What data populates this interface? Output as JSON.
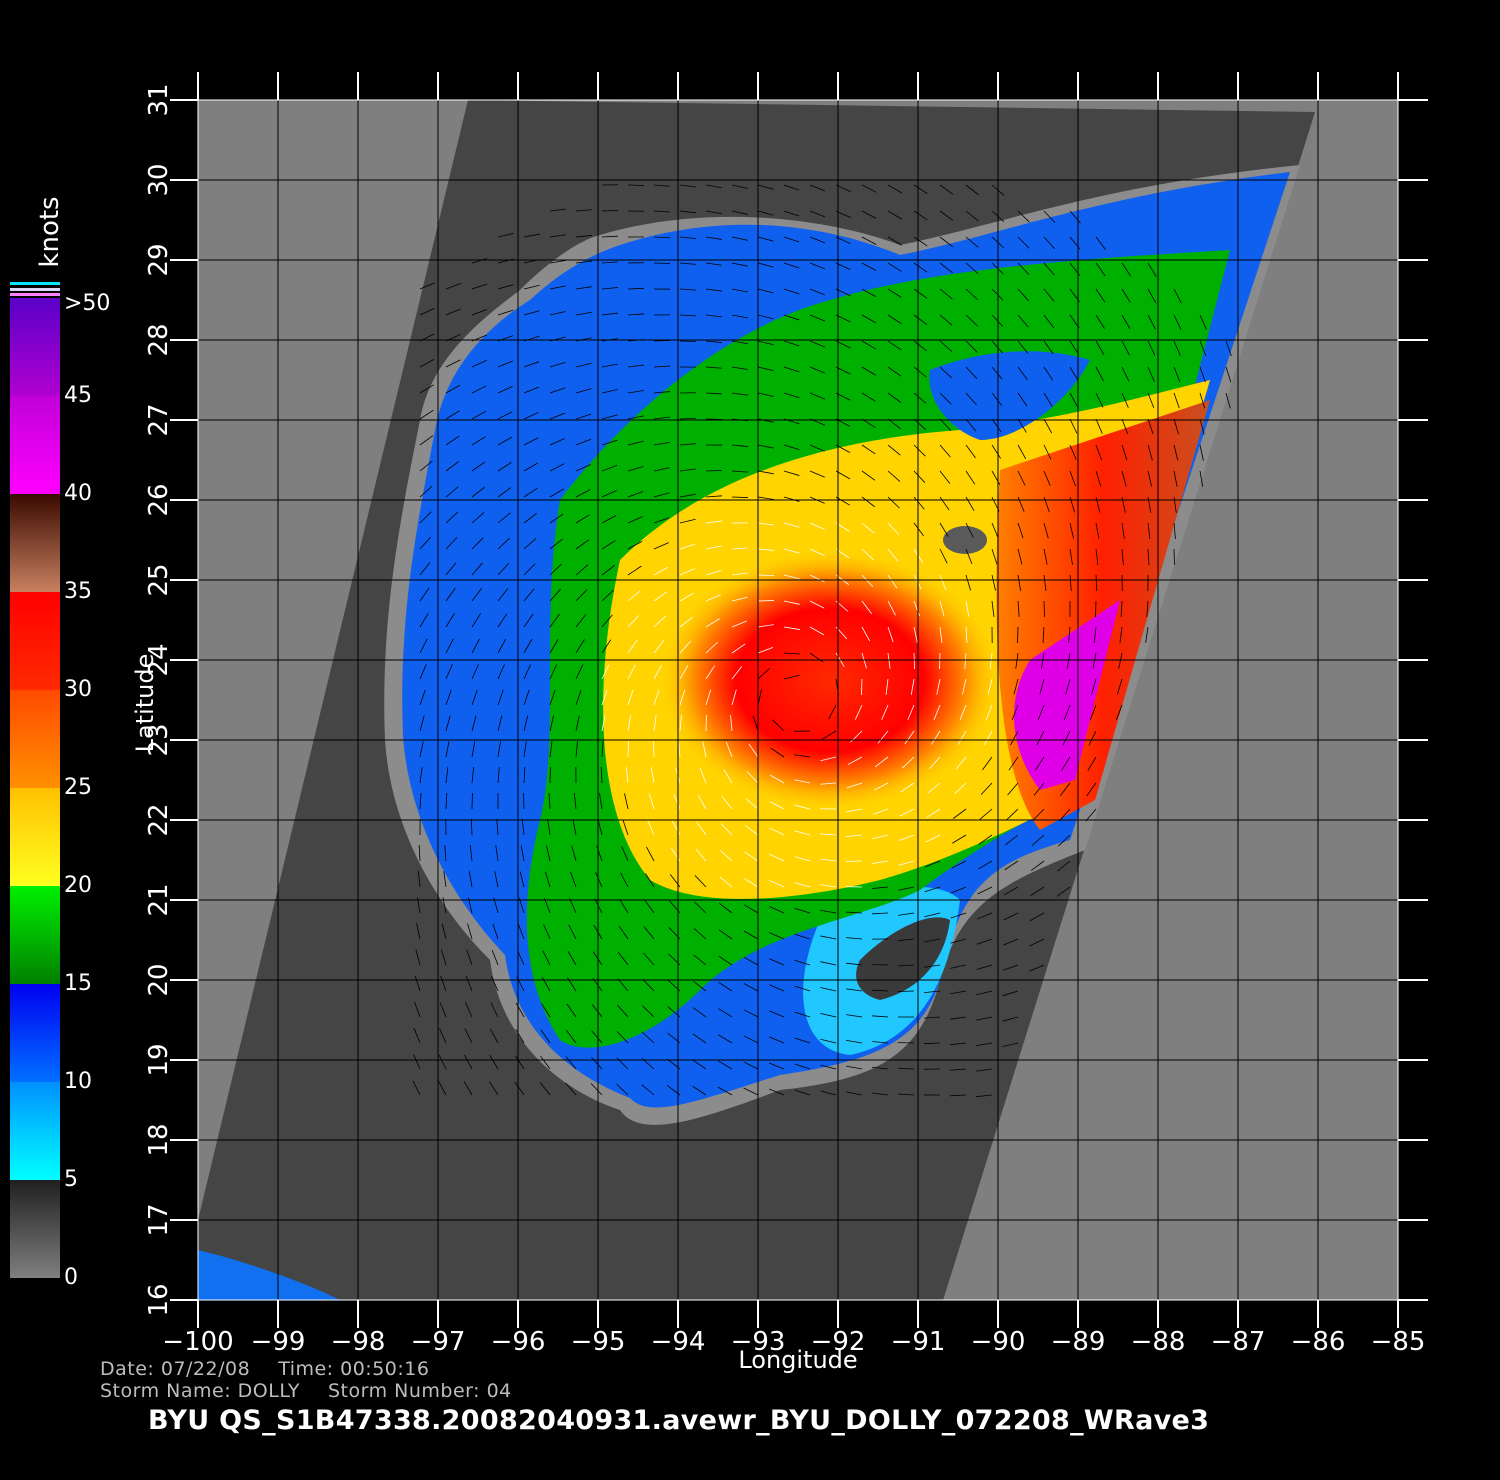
{
  "map": {
    "xlabel": "Longitude",
    "ylabel": "Latitude",
    "lon_ticks": [
      "−100",
      "−99",
      "−98",
      "−97",
      "−96",
      "−95",
      "−94",
      "−93",
      "−92",
      "−91",
      "−90",
      "−89",
      "−88",
      "−87",
      "−86",
      "−85"
    ],
    "lat_ticks": [
      "16",
      "17",
      "18",
      "19",
      "20",
      "21",
      "22",
      "23",
      "24",
      "25",
      "26",
      "27",
      "28",
      "29",
      "30",
      "31"
    ],
    "lon_range": [
      -100,
      -85
    ],
    "lat_range": [
      16,
      31
    ],
    "storm_center": {
      "lon": -92.5,
      "lat": 23.5
    },
    "colors": {
      "land": "#7f7f7f",
      "out_of_swath": "#454545",
      "background": "#000000"
    }
  },
  "colorbar": {
    "units": "knots",
    "labels": [
      ">50",
      "45",
      "40",
      "35",
      "30",
      "25",
      "20",
      "15",
      "10",
      "5",
      "0"
    ],
    "segments": [
      {
        "range": "45-50",
        "top": "#5a00c8",
        "bottom": "#b000d0"
      },
      {
        "range": "40-45",
        "top": "#c000d8",
        "bottom": "#ff00ff"
      },
      {
        "range": "35-40",
        "top": "#3a0a00",
        "bottom": "#c88060"
      },
      {
        "range": "30-35",
        "top": "#ff0000",
        "bottom": "#ff2a00"
      },
      {
        "range": "25-30",
        "top": "#ff4a00",
        "bottom": "#ff9000"
      },
      {
        "range": "20-25",
        "top": "#ffc000",
        "bottom": "#ffff20"
      },
      {
        "range": "15-20",
        "top": "#00f000",
        "bottom": "#008000"
      },
      {
        "range": "10-15",
        "top": "#0000f0",
        "bottom": "#0070ff"
      },
      {
        "range": "5-10",
        "top": "#0090ff",
        "bottom": "#00ffff"
      },
      {
        "range": "0-5",
        "top": "#202020",
        "bottom": "#7f7f7f"
      }
    ]
  },
  "info": {
    "date": "Date: 07/22/08",
    "time": "Time: 00:50:16",
    "storm_name": "Storm  Name: DOLLY",
    "storm_number": "Storm  Number: 04"
  },
  "footer": "BYU  QS_S1B47338.20082040931.avewr_BYU_DOLLY_072208_WRave3"
}
